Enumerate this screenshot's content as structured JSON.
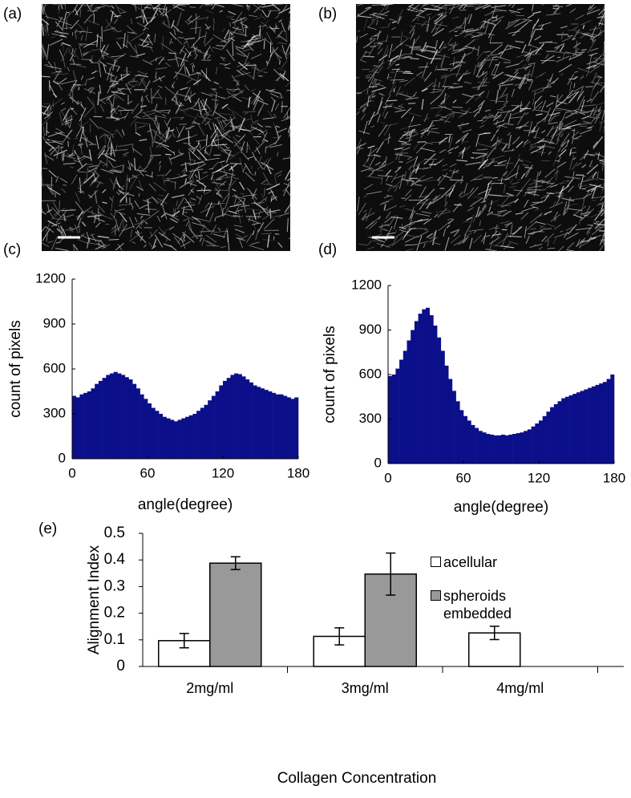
{
  "panel_labels": [
    "(a)",
    "(b)",
    "(c)",
    "(d)",
    "(e)"
  ],
  "chart_data": [
    {
      "type": "histogram",
      "xlabel": "angle(degree)",
      "ylabel": "count of pixels",
      "color": "#0b0f8a",
      "bins": [
        0,
        3,
        6,
        9,
        12,
        15,
        18,
        21,
        24,
        27,
        30,
        33,
        36,
        39,
        42,
        45,
        48,
        51,
        54,
        57,
        60,
        63,
        66,
        69,
        72,
        75,
        78,
        81,
        84,
        87,
        90,
        93,
        96,
        99,
        102,
        105,
        108,
        111,
        114,
        117,
        120,
        123,
        126,
        129,
        132,
        135,
        138,
        141,
        144,
        147,
        150,
        153,
        156,
        159,
        162,
        165,
        168,
        171,
        174,
        177,
        180
      ],
      "values": [
        420,
        410,
        430,
        440,
        450,
        470,
        500,
        520,
        540,
        560,
        570,
        580,
        570,
        560,
        545,
        530,
        500,
        470,
        430,
        400,
        370,
        340,
        320,
        300,
        280,
        270,
        260,
        250,
        260,
        270,
        280,
        290,
        300,
        320,
        340,
        360,
        390,
        420,
        450,
        490,
        520,
        540,
        560,
        570,
        565,
        550,
        530,
        510,
        490,
        480,
        470,
        460,
        450,
        440,
        430,
        430,
        420,
        410,
        400,
        410
      ],
      "xlim": [
        0,
        180
      ],
      "xticks": [
        0,
        60,
        120,
        180
      ],
      "ylim": [
        0,
        1200
      ],
      "yticks": [
        0,
        300,
        600,
        900,
        1200
      ]
    },
    {
      "type": "histogram",
      "xlabel": "angle(degree)",
      "ylabel": "count of pixels",
      "color": "#0b0f8a",
      "bins": [
        0,
        3,
        6,
        9,
        12,
        15,
        18,
        21,
        24,
        27,
        30,
        33,
        36,
        39,
        42,
        45,
        48,
        51,
        54,
        57,
        60,
        63,
        66,
        69,
        72,
        75,
        78,
        81,
        84,
        87,
        90,
        93,
        96,
        99,
        102,
        105,
        108,
        111,
        114,
        117,
        120,
        123,
        126,
        129,
        132,
        135,
        138,
        141,
        144,
        147,
        150,
        153,
        156,
        159,
        162,
        165,
        168,
        171,
        174,
        177,
        180
      ],
      "values": [
        590,
        600,
        640,
        700,
        760,
        830,
        900,
        960,
        1010,
        1040,
        1050,
        1000,
        930,
        850,
        760,
        660,
        570,
        490,
        420,
        360,
        320,
        290,
        260,
        240,
        220,
        210,
        200,
        195,
        190,
        190,
        195,
        190,
        195,
        200,
        205,
        210,
        220,
        230,
        250,
        270,
        290,
        320,
        350,
        380,
        400,
        420,
        440,
        450,
        460,
        470,
        480,
        490,
        500,
        510,
        520,
        530,
        540,
        550,
        570,
        600
      ],
      "xlim": [
        0,
        180
      ],
      "xticks": [
        0,
        60,
        120,
        180
      ],
      "ylim": [
        0,
        1200
      ],
      "yticks": [
        0,
        300,
        600,
        900,
        1200
      ]
    },
    {
      "type": "bar",
      "xlabel": "Collagen Concentration",
      "ylabel": "Alignment Index",
      "categories": [
        "2mg/ml",
        "3mg/ml",
        "4mg/ml"
      ],
      "series": [
        {
          "name": "acellular",
          "color": "#ffffff",
          "values": [
            0.097,
            0.113,
            0.126
          ],
          "errors": [
            0.027,
            0.032,
            0.025
          ]
        },
        {
          "name": "spheroids embedded",
          "color": "#999999",
          "values": [
            0.388,
            0.347,
            null
          ],
          "errors": [
            0.024,
            0.079,
            null
          ]
        }
      ],
      "ylim": [
        0,
        0.5
      ],
      "yticks": [
        0,
        0.1,
        0.2,
        0.3,
        0.4,
        0.5
      ]
    }
  ]
}
